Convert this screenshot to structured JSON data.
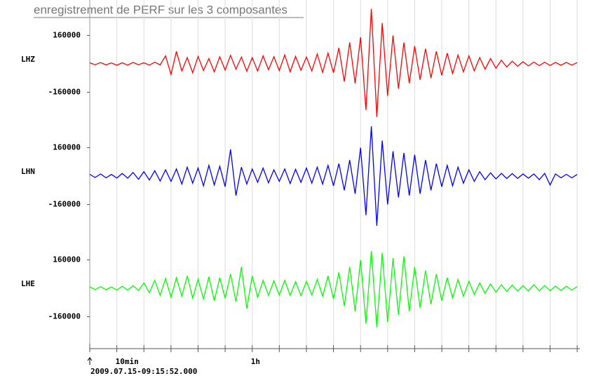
{
  "chart_data": {
    "type": "line",
    "title": "enregistrement de PERF sur les 3 composantes",
    "start_label": "2009.07.15-09:15:52.000",
    "x": [
      0,
      2,
      4,
      6,
      8,
      10,
      12,
      14,
      16,
      18,
      20,
      22,
      24,
      26,
      28,
      30,
      32,
      34,
      36,
      38,
      40,
      42,
      44,
      46,
      48,
      50,
      52,
      54,
      56,
      58,
      60,
      62,
      64,
      66,
      68,
      70,
      72,
      74,
      76,
      78,
      80,
      82,
      84,
      86,
      88,
      90,
      92,
      94,
      96,
      98,
      100,
      102,
      104,
      106,
      108,
      110,
      112,
      114,
      116,
      118,
      120,
      122,
      124,
      126,
      128,
      130,
      132,
      134,
      136,
      138,
      140,
      142,
      144,
      146,
      148,
      150,
      152,
      154,
      156,
      158,
      160,
      162,
      164,
      166,
      168,
      170,
      172,
      174,
      176,
      178,
      180
    ],
    "xlim": [
      0,
      181
    ],
    "xticks": [
      {
        "value": 10,
        "label": "10min"
      },
      {
        "value": 60,
        "label": "1h"
      }
    ],
    "xgrid": [
      10,
      20,
      30,
      40,
      50,
      60,
      70,
      80,
      90,
      100,
      110,
      120,
      130,
      140,
      150,
      160,
      170,
      180
    ],
    "ylim": [
      -320000,
      320000
    ],
    "yticks": [
      160000,
      -160000
    ],
    "series": [
      {
        "name": "LHZ",
        "color": "#ff0000",
        "values": [
          6000,
          -5000,
          7000,
          -6000,
          5000,
          -8000,
          6000,
          -7000,
          8000,
          -5000,
          6000,
          -7000,
          9000,
          -6000,
          45000,
          -60000,
          70000,
          -40000,
          35000,
          -50000,
          42000,
          -38000,
          30000,
          -45000,
          40000,
          -35000,
          48000,
          -30000,
          38000,
          -42000,
          35000,
          -40000,
          45000,
          -33000,
          40000,
          -38000,
          50000,
          -45000,
          42000,
          -36000,
          38000,
          -40000,
          55000,
          -48000,
          60000,
          -50000,
          90000,
          -100000,
          120000,
          -110000,
          150000,
          -260000,
          310000,
          -300000,
          230000,
          -180000,
          160000,
          -140000,
          120000,
          -110000,
          100000,
          -90000,
          85000,
          -80000,
          70000,
          -65000,
          60000,
          -55000,
          50000,
          -45000,
          45000,
          -40000,
          35000,
          -30000,
          30000,
          -25000,
          20000,
          -18000,
          15000,
          -14000,
          12000,
          -12000,
          10000,
          -10000,
          9000,
          -9000,
          8000,
          -8000,
          8000,
          -7000,
          7000
        ]
      },
      {
        "name": "LHN",
        "color": "#0000ff",
        "values": [
          10000,
          -8000,
          12000,
          -10000,
          9000,
          -11000,
          15000,
          -12000,
          20000,
          -18000,
          25000,
          -22000,
          30000,
          -28000,
          35000,
          -30000,
          40000,
          -45000,
          50000,
          -40000,
          45000,
          -55000,
          60000,
          -50000,
          55000,
          -60000,
          150000,
          -110000,
          50000,
          -45000,
          40000,
          -35000,
          45000,
          -38000,
          35000,
          -30000,
          40000,
          -42000,
          38000,
          -35000,
          45000,
          -40000,
          50000,
          -45000,
          60000,
          -55000,
          70000,
          -80000,
          90000,
          -100000,
          160000,
          -220000,
          280000,
          -280000,
          200000,
          -160000,
          140000,
          -120000,
          130000,
          -110000,
          120000,
          -100000,
          90000,
          -80000,
          70000,
          -60000,
          60000,
          -55000,
          50000,
          -40000,
          35000,
          -30000,
          25000,
          -20000,
          18000,
          -16000,
          15000,
          -14000,
          14000,
          -13000,
          12000,
          -12000,
          12000,
          -20000,
          15000,
          -50000,
          12000,
          -10000,
          10000,
          -10000,
          9000
        ]
      },
      {
        "name": "LHE",
        "color": "#00ff00",
        "values": [
          8000,
          -7000,
          9000,
          -8000,
          8000,
          -10000,
          12000,
          -10000,
          15000,
          -12000,
          30000,
          -25000,
          45000,
          -40000,
          55000,
          -50000,
          60000,
          -45000,
          70000,
          -55000,
          50000,
          -60000,
          65000,
          -70000,
          60000,
          -55000,
          80000,
          -75000,
          120000,
          -115000,
          70000,
          -50000,
          45000,
          -40000,
          42000,
          -38000,
          45000,
          -40000,
          38000,
          -42000,
          40000,
          -38000,
          50000,
          -45000,
          70000,
          -60000,
          90000,
          -100000,
          120000,
          -130000,
          160000,
          -200000,
          210000,
          -220000,
          200000,
          -190000,
          170000,
          -150000,
          180000,
          -130000,
          120000,
          -110000,
          100000,
          -90000,
          80000,
          -70000,
          60000,
          -55000,
          50000,
          -45000,
          40000,
          -35000,
          30000,
          -28000,
          25000,
          -22000,
          20000,
          -18000,
          18000,
          -16000,
          15000,
          -15000,
          20000,
          -14000,
          15000,
          -13000,
          12000,
          -12000,
          12000,
          -10000,
          10000
        ]
      }
    ]
  }
}
